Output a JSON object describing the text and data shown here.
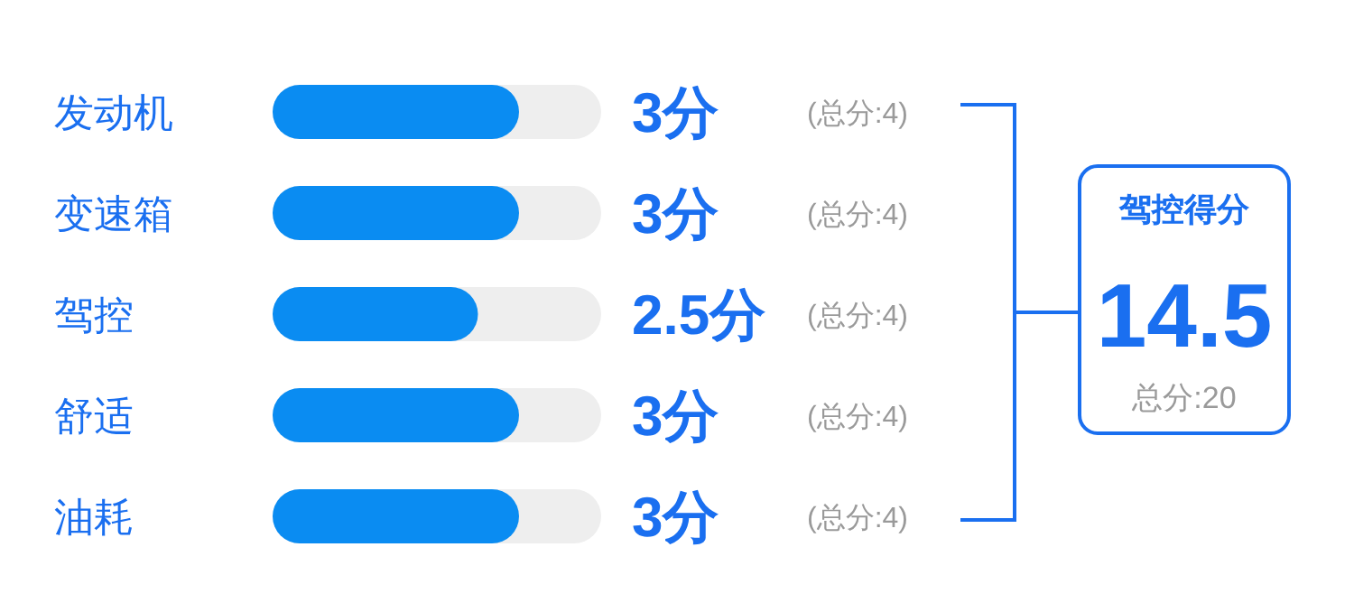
{
  "chart_data": {
    "type": "bar",
    "orientation": "horizontal",
    "tick_labels": "y",
    "categories": [
      "发动机",
      "变速箱",
      "驾控",
      "舒适",
      "油耗"
    ],
    "values": [
      3,
      3,
      2.5,
      3,
      3
    ],
    "value_labels": [
      "3分",
      "3分",
      "2.5分",
      "3分",
      "3分"
    ],
    "color": "#0a8cf2",
    "xlim": [
      0,
      4
    ],
    "annotations": [
      "(总分:4)",
      "(总分:4)",
      "(总分:4)",
      "(总分:4)",
      "(总分:4)",
      "驾控得分",
      "14.5",
      "总分:20"
    ]
  }
}
